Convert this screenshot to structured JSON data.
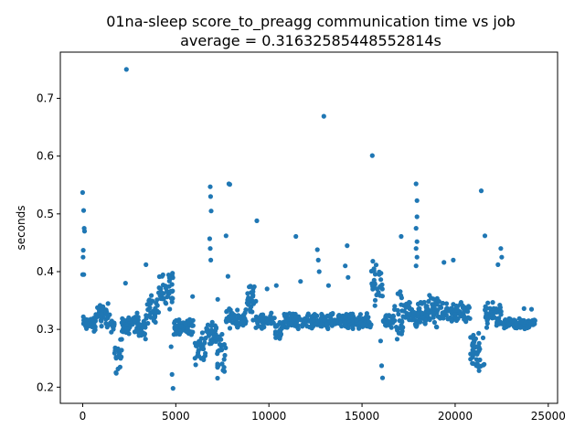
{
  "chart_data": {
    "type": "scatter",
    "title_line1": "01na-sleep score_to_preagg communication time vs job",
    "title_line2": "average = 0.31632585448552814s",
    "xlabel": "",
    "ylabel": "seconds",
    "xlim": [
      -1200,
      25500
    ],
    "ylim": [
      0.172,
      0.78
    ],
    "xticks": [
      0,
      5000,
      10000,
      15000,
      20000,
      25000
    ],
    "xtick_labels": [
      "0",
      "5000",
      "10000",
      "15000",
      "20000",
      "25000"
    ],
    "yticks": [
      0.2,
      0.3,
      0.4,
      0.5,
      0.6,
      0.7
    ],
    "ytick_labels": [
      "0.2",
      "0.3",
      "0.4",
      "0.5",
      "0.6",
      "0.7"
    ],
    "grid": false,
    "marker_color": "#1f77b4",
    "segments": [
      {
        "x0": 0,
        "x1": 200,
        "ymin": 0.29,
        "ymax": 0.33
      },
      {
        "x0": 200,
        "x1": 700,
        "ymin": 0.29,
        "ymax": 0.33
      },
      {
        "x0": 700,
        "x1": 1500,
        "ymin": 0.3,
        "ymax": 0.35
      },
      {
        "x0": 1500,
        "x1": 1700,
        "ymin": 0.29,
        "ymax": 0.32
      },
      {
        "x0": 1700,
        "x1": 2100,
        "ymin": 0.215,
        "ymax": 0.3
      },
      {
        "x0": 2100,
        "x1": 3000,
        "ymin": 0.29,
        "ymax": 0.33
      },
      {
        "x0": 3000,
        "x1": 3400,
        "ymin": 0.28,
        "ymax": 0.32
      },
      {
        "x0": 3400,
        "x1": 4000,
        "ymin": 0.3,
        "ymax": 0.36
      },
      {
        "x0": 4000,
        "x1": 4900,
        "ymin": 0.32,
        "ymax": 0.41
      },
      {
        "x0": 4900,
        "x1": 6000,
        "ymin": 0.29,
        "ymax": 0.32
      },
      {
        "x0": 6000,
        "x1": 6600,
        "ymin": 0.23,
        "ymax": 0.3
      },
      {
        "x0": 6600,
        "x1": 7200,
        "ymin": 0.27,
        "ymax": 0.32
      },
      {
        "x0": 7200,
        "x1": 7700,
        "ymin": 0.21,
        "ymax": 0.3
      },
      {
        "x0": 7700,
        "x1": 8800,
        "ymin": 0.3,
        "ymax": 0.34
      },
      {
        "x0": 8800,
        "x1": 9300,
        "ymin": 0.31,
        "ymax": 0.39
      },
      {
        "x0": 9300,
        "x1": 10300,
        "ymin": 0.3,
        "ymax": 0.33
      },
      {
        "x0": 10300,
        "x1": 10700,
        "ymin": 0.28,
        "ymax": 0.32
      },
      {
        "x0": 10700,
        "x1": 15500,
        "ymin": 0.3,
        "ymax": 0.33
      },
      {
        "x0": 15500,
        "x1": 16100,
        "ymin": 0.33,
        "ymax": 0.42
      },
      {
        "x0": 16100,
        "x1": 16700,
        "ymin": 0.3,
        "ymax": 0.33
      },
      {
        "x0": 16700,
        "x1": 17200,
        "ymin": 0.26,
        "ymax": 0.37
      },
      {
        "x0": 17200,
        "x1": 18500,
        "ymin": 0.3,
        "ymax": 0.35
      },
      {
        "x0": 18500,
        "x1": 19300,
        "ymin": 0.3,
        "ymax": 0.37
      },
      {
        "x0": 19300,
        "x1": 20800,
        "ymin": 0.31,
        "ymax": 0.35
      },
      {
        "x0": 20800,
        "x1": 21600,
        "ymin": 0.22,
        "ymax": 0.3
      },
      {
        "x0": 21600,
        "x1": 22500,
        "ymin": 0.3,
        "ymax": 0.35
      },
      {
        "x0": 22500,
        "x1": 24300,
        "ymin": 0.3,
        "ymax": 0.32
      }
    ],
    "outliers": [
      {
        "x": 0,
        "y": 0.537
      },
      {
        "x": 50,
        "y": 0.506
      },
      {
        "x": 80,
        "y": 0.475
      },
      {
        "x": 100,
        "y": 0.47
      },
      {
        "x": 30,
        "y": 0.437
      },
      {
        "x": 20,
        "y": 0.425
      },
      {
        "x": 0,
        "y": 0.395
      },
      {
        "x": 60,
        "y": 0.395
      },
      {
        "x": 2350,
        "y": 0.75
      },
      {
        "x": 2300,
        "y": 0.38
      },
      {
        "x": 3400,
        "y": 0.412
      },
      {
        "x": 4750,
        "y": 0.27
      },
      {
        "x": 4800,
        "y": 0.222
      },
      {
        "x": 4850,
        "y": 0.198
      },
      {
        "x": 5900,
        "y": 0.357
      },
      {
        "x": 6850,
        "y": 0.547
      },
      {
        "x": 6870,
        "y": 0.53
      },
      {
        "x": 6900,
        "y": 0.505
      },
      {
        "x": 6820,
        "y": 0.457
      },
      {
        "x": 6850,
        "y": 0.44
      },
      {
        "x": 6880,
        "y": 0.42
      },
      {
        "x": 7700,
        "y": 0.462
      },
      {
        "x": 7850,
        "y": 0.552
      },
      {
        "x": 7900,
        "y": 0.551
      },
      {
        "x": 7800,
        "y": 0.392
      },
      {
        "x": 7250,
        "y": 0.352
      },
      {
        "x": 9350,
        "y": 0.488
      },
      {
        "x": 9900,
        "y": 0.37
      },
      {
        "x": 10400,
        "y": 0.376
      },
      {
        "x": 11450,
        "y": 0.461
      },
      {
        "x": 11700,
        "y": 0.383
      },
      {
        "x": 12600,
        "y": 0.438
      },
      {
        "x": 12650,
        "y": 0.42
      },
      {
        "x": 12700,
        "y": 0.4
      },
      {
        "x": 12950,
        "y": 0.669
      },
      {
        "x": 13200,
        "y": 0.376
      },
      {
        "x": 14200,
        "y": 0.445
      },
      {
        "x": 14100,
        "y": 0.41
      },
      {
        "x": 14250,
        "y": 0.39
      },
      {
        "x": 15550,
        "y": 0.601
      },
      {
        "x": 16000,
        "y": 0.28
      },
      {
        "x": 16050,
        "y": 0.237
      },
      {
        "x": 16100,
        "y": 0.216
      },
      {
        "x": 17100,
        "y": 0.461
      },
      {
        "x": 17900,
        "y": 0.552
      },
      {
        "x": 17950,
        "y": 0.523
      },
      {
        "x": 17950,
        "y": 0.495
      },
      {
        "x": 17900,
        "y": 0.475
      },
      {
        "x": 17950,
        "y": 0.452
      },
      {
        "x": 17900,
        "y": 0.44
      },
      {
        "x": 17950,
        "y": 0.425
      },
      {
        "x": 17900,
        "y": 0.41
      },
      {
        "x": 19900,
        "y": 0.42
      },
      {
        "x": 19400,
        "y": 0.416
      },
      {
        "x": 21400,
        "y": 0.54
      },
      {
        "x": 21600,
        "y": 0.462
      },
      {
        "x": 22450,
        "y": 0.44
      },
      {
        "x": 22500,
        "y": 0.425
      },
      {
        "x": 22300,
        "y": 0.412
      },
      {
        "x": 23700,
        "y": 0.336
      },
      {
        "x": 24100,
        "y": 0.335
      }
    ]
  }
}
